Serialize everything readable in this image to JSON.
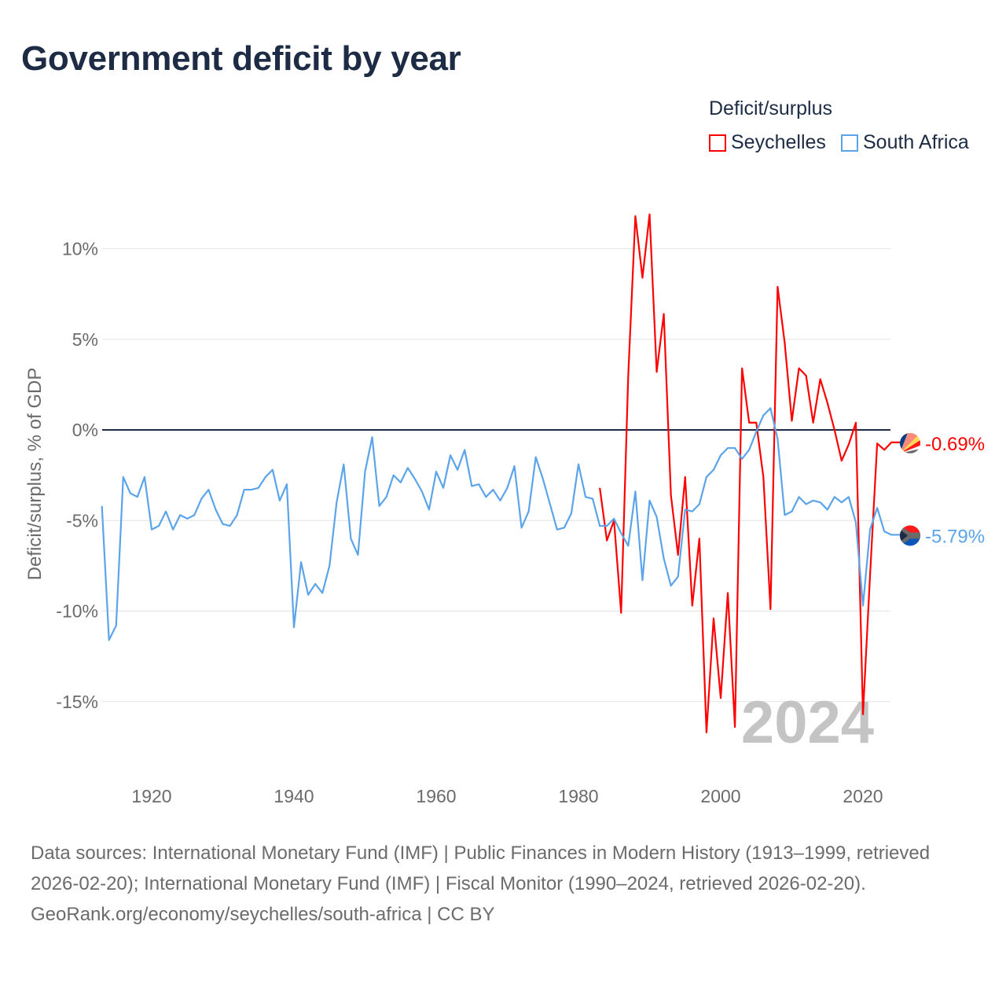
{
  "title": "Government deficit by year",
  "legend": {
    "title": "Deficit/surplus",
    "items": [
      {
        "name": "Seychelles",
        "color": "#ff0000"
      },
      {
        "name": "South Africa",
        "color": "#5ba4ea"
      }
    ]
  },
  "footer": {
    "sources": "Data sources: International Monetary Fund (IMF) | Public Finances in Modern History (1913–1999, retrieved 2026-02-20); International Monetary Fund (IMF) | Fiscal Monitor (1990–2024, retrieved 2026-02-20).",
    "credit": "GeoRank.org/economy/seychelles/south-africa | CC BY"
  },
  "chart_data": {
    "type": "line",
    "title": "Government deficit by year",
    "xlabel": "",
    "ylabel": "Deficit/surplus, % of GDP",
    "xlim": [
      1913,
      2024
    ],
    "ylim": [
      -17,
      12
    ],
    "x_ticks": [
      1920,
      1940,
      1960,
      1980,
      2000,
      2020
    ],
    "x_tick_labels": [
      "1920",
      "1940",
      "1960",
      "1980",
      "2000",
      "2020"
    ],
    "y_ticks": [
      10,
      5,
      0,
      -5,
      -10,
      -15
    ],
    "y_tick_labels": [
      "10%",
      "5%",
      "0%",
      "-5%",
      "-10%",
      "-15%"
    ],
    "grid": true,
    "legend_position": "top-right",
    "year_watermark": "2024",
    "end_labels": {
      "Seychelles": "-0.69%",
      "South Africa": "-5.79%"
    },
    "series": [
      {
        "name": "Seychelles",
        "color": "#ff0000",
        "start_year": 1983,
        "values": [
          -3.2,
          -6.1,
          -5.0,
          -10.1,
          3.0,
          11.8,
          8.4,
          11.9,
          3.2,
          6.4,
          -3.6,
          -6.9,
          -2.6,
          -9.7,
          -6.0,
          -16.7,
          -10.4,
          -14.8,
          -9.0,
          -16.4,
          3.4,
          0.4,
          0.4,
          -2.6,
          -9.9,
          7.9,
          4.8,
          0.5,
          3.4,
          3.0,
          0.4,
          2.8,
          1.5,
          0.0,
          -1.7,
          -0.8,
          0.4,
          -15.7,
          -8.0,
          -0.75,
          -1.1,
          -0.69
        ]
      },
      {
        "name": "South Africa",
        "color": "#5ba4ea",
        "start_year": 1913,
        "values": [
          -4.2,
          -11.6,
          -10.8,
          -2.6,
          -3.5,
          -3.7,
          -2.6,
          -5.5,
          -5.3,
          -4.5,
          -5.5,
          -4.7,
          -4.9,
          -4.7,
          -3.8,
          -3.3,
          -4.4,
          -5.2,
          -5.3,
          -4.7,
          -3.3,
          -3.3,
          -3.2,
          -2.6,
          -2.2,
          -3.9,
          -3.0,
          -10.9,
          -7.3,
          -9.1,
          -8.5,
          -9.0,
          -7.5,
          -4.0,
          -1.9,
          -6.0,
          -6.9,
          -2.3,
          -0.4,
          -4.2,
          -3.7,
          -2.5,
          -2.9,
          -2.1,
          -2.7,
          -3.4,
          -4.4,
          -2.3,
          -3.2,
          -1.4,
          -2.2,
          -1.1,
          -3.1,
          -3.0,
          -3.7,
          -3.3,
          -3.9,
          -3.2,
          -2.0,
          -5.4,
          -4.5,
          -1.5,
          -2.7,
          -4.1,
          -5.5,
          -5.4,
          -4.6,
          -1.9,
          -3.7,
          -3.8,
          -5.3,
          -5.3,
          -4.9,
          -5.7,
          -6.4,
          -3.4,
          -8.3,
          -3.9,
          -4.8,
          -7.1,
          -8.6,
          -8.1,
          -4.4,
          -4.5,
          -4.1,
          -2.6,
          -2.2,
          -1.4,
          -1.0,
          -1.0,
          -1.6,
          -1.1,
          -0.1,
          0.8,
          1.2,
          -0.5,
          -4.7,
          -4.5,
          -3.7,
          -4.1,
          -3.9,
          -4.0,
          -4.4,
          -3.7,
          -4.0,
          -3.7,
          -5.1,
          -9.7,
          -5.5,
          -4.3,
          -5.6,
          -5.79
        ]
      }
    ]
  }
}
